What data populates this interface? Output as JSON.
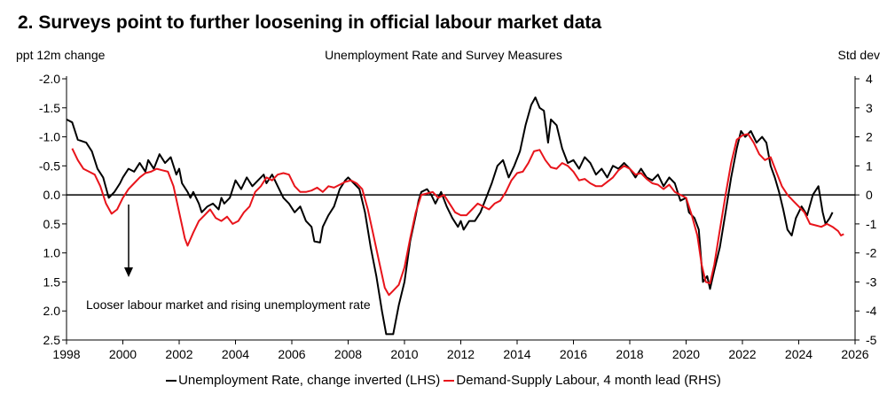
{
  "heading": "2. Surveys point to further loosening in official labour market data",
  "chart_data": {
    "type": "line",
    "title": "Unemployment Rate and Survey Measures",
    "ylabel_left": "ppt 12m change",
    "ylabel_right": "Std dev",
    "x_ticks": [
      "1998",
      "2000",
      "2002",
      "2004",
      "2006",
      "2008",
      "2010",
      "2012",
      "2014",
      "2016",
      "2018",
      "2020",
      "2022",
      "2024",
      "2026"
    ],
    "y_left_ticks": [
      "-2.0",
      "-1.5",
      "-1.0",
      "-0.5",
      "0.0",
      "0.5",
      "1.0",
      "1.5",
      "2.0",
      "2.5"
    ],
    "y_right_ticks": [
      "4",
      "3",
      "2",
      "1",
      "0",
      "-1",
      "-2",
      "-3",
      "-4",
      "-5"
    ],
    "y_left_range": [
      -2.0,
      2.5
    ],
    "y_left_inverted": true,
    "y_right_range": [
      -5,
      4
    ],
    "x_range": [
      1998,
      2026
    ],
    "grid": false,
    "legend_position": "bottom",
    "annotation": "Looser labour market and rising unemployment rate",
    "colors": {
      "unemployment": "#000000",
      "demand_supply": "#e8141b"
    },
    "series": [
      {
        "name": "Unemployment Rate, change inverted (LHS)",
        "axis": "left",
        "points": [
          [
            1998.0,
            -1.3
          ],
          [
            1998.2,
            -1.25
          ],
          [
            1998.4,
            -0.95
          ],
          [
            1998.7,
            -0.9
          ],
          [
            1998.9,
            -0.75
          ],
          [
            1999.1,
            -0.45
          ],
          [
            1999.3,
            -0.3
          ],
          [
            1999.5,
            0.05
          ],
          [
            1999.7,
            -0.05
          ],
          [
            1999.9,
            -0.2
          ],
          [
            2000.0,
            -0.3
          ],
          [
            2000.2,
            -0.45
          ],
          [
            2000.4,
            -0.4
          ],
          [
            2000.6,
            -0.55
          ],
          [
            2000.8,
            -0.4
          ],
          [
            2000.9,
            -0.6
          ],
          [
            2001.1,
            -0.45
          ],
          [
            2001.3,
            -0.7
          ],
          [
            2001.5,
            -0.55
          ],
          [
            2001.7,
            -0.65
          ],
          [
            2001.9,
            -0.35
          ],
          [
            2002.0,
            -0.45
          ],
          [
            2002.1,
            -0.2
          ],
          [
            2002.3,
            -0.05
          ],
          [
            2002.4,
            0.05
          ],
          [
            2002.5,
            -0.05
          ],
          [
            2002.7,
            0.15
          ],
          [
            2002.8,
            0.3
          ],
          [
            2003.0,
            0.2
          ],
          [
            2003.2,
            0.15
          ],
          [
            2003.4,
            0.25
          ],
          [
            2003.5,
            0.05
          ],
          [
            2003.6,
            0.15
          ],
          [
            2003.8,
            0.05
          ],
          [
            2004.0,
            -0.25
          ],
          [
            2004.2,
            -0.1
          ],
          [
            2004.4,
            -0.3
          ],
          [
            2004.6,
            -0.15
          ],
          [
            2004.8,
            -0.25
          ],
          [
            2005.0,
            -0.35
          ],
          [
            2005.1,
            -0.2
          ],
          [
            2005.3,
            -0.35
          ],
          [
            2005.5,
            -0.15
          ],
          [
            2005.7,
            0.05
          ],
          [
            2005.9,
            0.15
          ],
          [
            2006.1,
            0.3
          ],
          [
            2006.3,
            0.2
          ],
          [
            2006.5,
            0.45
          ],
          [
            2006.7,
            0.55
          ],
          [
            2006.8,
            0.8
          ],
          [
            2007.0,
            0.82
          ],
          [
            2007.1,
            0.55
          ],
          [
            2007.3,
            0.35
          ],
          [
            2007.5,
            0.2
          ],
          [
            2007.7,
            -0.1
          ],
          [
            2007.9,
            -0.25
          ],
          [
            2008.0,
            -0.3
          ],
          [
            2008.2,
            -0.2
          ],
          [
            2008.4,
            -0.1
          ],
          [
            2008.6,
            0.3
          ],
          [
            2008.8,
            0.9
          ],
          [
            2009.0,
            1.4
          ],
          [
            2009.2,
            2.0
          ],
          [
            2009.35,
            2.4
          ],
          [
            2009.6,
            2.4
          ],
          [
            2009.8,
            1.9
          ],
          [
            2010.0,
            1.5
          ],
          [
            2010.2,
            0.8
          ],
          [
            2010.4,
            0.35
          ],
          [
            2010.5,
            0.1
          ],
          [
            2010.6,
            -0.05
          ],
          [
            2010.8,
            -0.1
          ],
          [
            2010.95,
            0.0
          ],
          [
            2011.1,
            0.15
          ],
          [
            2011.3,
            -0.05
          ],
          [
            2011.5,
            0.2
          ],
          [
            2011.7,
            0.4
          ],
          [
            2011.9,
            0.55
          ],
          [
            2012.0,
            0.45
          ],
          [
            2012.1,
            0.6
          ],
          [
            2012.3,
            0.45
          ],
          [
            2012.5,
            0.45
          ],
          [
            2012.7,
            0.3
          ],
          [
            2012.9,
            0.05
          ],
          [
            2013.1,
            -0.2
          ],
          [
            2013.3,
            -0.5
          ],
          [
            2013.5,
            -0.6
          ],
          [
            2013.7,
            -0.3
          ],
          [
            2013.9,
            -0.5
          ],
          [
            2014.1,
            -0.75
          ],
          [
            2014.3,
            -1.2
          ],
          [
            2014.5,
            -1.55
          ],
          [
            2014.65,
            -1.68
          ],
          [
            2014.8,
            -1.5
          ],
          [
            2014.95,
            -1.45
          ],
          [
            2015.1,
            -0.9
          ],
          [
            2015.2,
            -1.3
          ],
          [
            2015.4,
            -1.2
          ],
          [
            2015.6,
            -0.8
          ],
          [
            2015.8,
            -0.55
          ],
          [
            2016.0,
            -0.6
          ],
          [
            2016.2,
            -0.45
          ],
          [
            2016.4,
            -0.65
          ],
          [
            2016.6,
            -0.55
          ],
          [
            2016.8,
            -0.35
          ],
          [
            2017.0,
            -0.45
          ],
          [
            2017.2,
            -0.3
          ],
          [
            2017.4,
            -0.5
          ],
          [
            2017.6,
            -0.45
          ],
          [
            2017.8,
            -0.55
          ],
          [
            2018.0,
            -0.45
          ],
          [
            2018.2,
            -0.3
          ],
          [
            2018.4,
            -0.45
          ],
          [
            2018.6,
            -0.3
          ],
          [
            2018.8,
            -0.25
          ],
          [
            2019.0,
            -0.35
          ],
          [
            2019.2,
            -0.15
          ],
          [
            2019.4,
            -0.3
          ],
          [
            2019.6,
            -0.2
          ],
          [
            2019.8,
            0.1
          ],
          [
            2020.0,
            0.05
          ],
          [
            2020.1,
            0.3
          ],
          [
            2020.3,
            0.4
          ],
          [
            2020.45,
            0.6
          ],
          [
            2020.6,
            1.5
          ],
          [
            2020.75,
            1.4
          ],
          [
            2020.85,
            1.62
          ],
          [
            2021.0,
            1.3
          ],
          [
            2021.2,
            0.9
          ],
          [
            2021.4,
            0.3
          ],
          [
            2021.6,
            -0.3
          ],
          [
            2021.8,
            -0.8
          ],
          [
            2021.95,
            -1.1
          ],
          [
            2022.1,
            -1.0
          ],
          [
            2022.3,
            -1.1
          ],
          [
            2022.5,
            -0.9
          ],
          [
            2022.7,
            -1.0
          ],
          [
            2022.85,
            -0.9
          ],
          [
            2023.0,
            -0.5
          ],
          [
            2023.15,
            -0.3
          ],
          [
            2023.3,
            -0.05
          ],
          [
            2023.45,
            0.25
          ],
          [
            2023.6,
            0.6
          ],
          [
            2023.75,
            0.7
          ],
          [
            2023.9,
            0.4
          ],
          [
            2024.1,
            0.2
          ],
          [
            2024.3,
            0.35
          ],
          [
            2024.5,
            0.0
          ],
          [
            2024.7,
            -0.15
          ],
          [
            2024.85,
            0.3
          ],
          [
            2024.95,
            0.5
          ],
          [
            2025.1,
            0.4
          ],
          [
            2025.2,
            0.3
          ]
        ]
      },
      {
        "name": "Demand-Supply Labour, 4 month lead (RHS)",
        "axis": "right",
        "points": [
          [
            1998.2,
            1.6
          ],
          [
            1998.4,
            1.2
          ],
          [
            1998.6,
            0.9
          ],
          [
            1998.8,
            0.8
          ],
          [
            1999.0,
            0.7
          ],
          [
            1999.2,
            0.3
          ],
          [
            1999.4,
            -0.3
          ],
          [
            1999.6,
            -0.65
          ],
          [
            1999.8,
            -0.5
          ],
          [
            2000.0,
            -0.1
          ],
          [
            2000.2,
            0.2
          ],
          [
            2000.4,
            0.4
          ],
          [
            2000.6,
            0.6
          ],
          [
            2000.8,
            0.75
          ],
          [
            2001.0,
            0.8
          ],
          [
            2001.2,
            0.9
          ],
          [
            2001.4,
            0.85
          ],
          [
            2001.6,
            0.8
          ],
          [
            2001.8,
            0.3
          ],
          [
            2002.0,
            -0.6
          ],
          [
            2002.2,
            -1.5
          ],
          [
            2002.3,
            -1.75
          ],
          [
            2002.5,
            -1.3
          ],
          [
            2002.7,
            -0.9
          ],
          [
            2002.9,
            -0.7
          ],
          [
            2003.1,
            -0.5
          ],
          [
            2003.3,
            -0.8
          ],
          [
            2003.5,
            -0.9
          ],
          [
            2003.7,
            -0.75
          ],
          [
            2003.9,
            -1.0
          ],
          [
            2004.1,
            -0.9
          ],
          [
            2004.3,
            -0.6
          ],
          [
            2004.5,
            -0.4
          ],
          [
            2004.7,
            0.1
          ],
          [
            2004.9,
            0.3
          ],
          [
            2005.1,
            0.6
          ],
          [
            2005.3,
            0.5
          ],
          [
            2005.5,
            0.7
          ],
          [
            2005.7,
            0.75
          ],
          [
            2005.9,
            0.7
          ],
          [
            2006.1,
            0.3
          ],
          [
            2006.3,
            0.1
          ],
          [
            2006.5,
            0.1
          ],
          [
            2006.7,
            0.15
          ],
          [
            2006.9,
            0.25
          ],
          [
            2007.1,
            0.1
          ],
          [
            2007.3,
            0.3
          ],
          [
            2007.5,
            0.25
          ],
          [
            2007.7,
            0.35
          ],
          [
            2007.9,
            0.45
          ],
          [
            2008.1,
            0.5
          ],
          [
            2008.3,
            0.4
          ],
          [
            2008.5,
            0.2
          ],
          [
            2008.7,
            -0.5
          ],
          [
            2008.9,
            -1.4
          ],
          [
            2009.1,
            -2.3
          ],
          [
            2009.3,
            -3.2
          ],
          [
            2009.45,
            -3.45
          ],
          [
            2009.6,
            -3.3
          ],
          [
            2009.8,
            -3.1
          ],
          [
            2010.0,
            -2.5
          ],
          [
            2010.2,
            -1.5
          ],
          [
            2010.4,
            -0.6
          ],
          [
            2010.6,
            0.0
          ],
          [
            2010.8,
            0.05
          ],
          [
            2011.0,
            0.1
          ],
          [
            2011.2,
            -0.1
          ],
          [
            2011.4,
            0.0
          ],
          [
            2011.6,
            -0.3
          ],
          [
            2011.8,
            -0.6
          ],
          [
            2012.0,
            -0.7
          ],
          [
            2012.2,
            -0.7
          ],
          [
            2012.4,
            -0.5
          ],
          [
            2012.6,
            -0.3
          ],
          [
            2012.8,
            -0.4
          ],
          [
            2013.0,
            -0.5
          ],
          [
            2013.2,
            -0.3
          ],
          [
            2013.4,
            -0.2
          ],
          [
            2013.6,
            0.1
          ],
          [
            2013.8,
            0.5
          ],
          [
            2014.0,
            0.75
          ],
          [
            2014.2,
            0.8
          ],
          [
            2014.4,
            1.1
          ],
          [
            2014.6,
            1.5
          ],
          [
            2014.8,
            1.55
          ],
          [
            2015.0,
            1.2
          ],
          [
            2015.2,
            0.95
          ],
          [
            2015.4,
            0.9
          ],
          [
            2015.6,
            1.1
          ],
          [
            2015.8,
            1.0
          ],
          [
            2016.0,
            0.8
          ],
          [
            2016.2,
            0.5
          ],
          [
            2016.4,
            0.55
          ],
          [
            2016.6,
            0.4
          ],
          [
            2016.8,
            0.3
          ],
          [
            2017.0,
            0.3
          ],
          [
            2017.2,
            0.45
          ],
          [
            2017.4,
            0.6
          ],
          [
            2017.6,
            0.85
          ],
          [
            2017.8,
            1.0
          ],
          [
            2018.0,
            0.9
          ],
          [
            2018.2,
            0.7
          ],
          [
            2018.4,
            0.75
          ],
          [
            2018.6,
            0.55
          ],
          [
            2018.8,
            0.4
          ],
          [
            2019.0,
            0.35
          ],
          [
            2019.2,
            0.2
          ],
          [
            2019.4,
            0.35
          ],
          [
            2019.6,
            0.1
          ],
          [
            2019.8,
            0.0
          ],
          [
            2020.0,
            -0.1
          ],
          [
            2020.2,
            -0.7
          ],
          [
            2020.4,
            -1.4
          ],
          [
            2020.55,
            -2.4
          ],
          [
            2020.7,
            -3.0
          ],
          [
            2020.85,
            -3.05
          ],
          [
            2021.0,
            -2.4
          ],
          [
            2021.2,
            -1.2
          ],
          [
            2021.4,
            0.0
          ],
          [
            2021.6,
            1.1
          ],
          [
            2021.8,
            1.9
          ],
          [
            2022.0,
            2.05
          ],
          [
            2022.2,
            2.1
          ],
          [
            2022.4,
            1.8
          ],
          [
            2022.6,
            1.4
          ],
          [
            2022.8,
            1.2
          ],
          [
            2023.0,
            1.3
          ],
          [
            2023.2,
            0.8
          ],
          [
            2023.4,
            0.3
          ],
          [
            2023.6,
            0.0
          ],
          [
            2023.8,
            -0.2
          ],
          [
            2024.0,
            -0.4
          ],
          [
            2024.2,
            -0.6
          ],
          [
            2024.4,
            -1.0
          ],
          [
            2024.6,
            -1.05
          ],
          [
            2024.8,
            -1.1
          ],
          [
            2025.0,
            -1.0
          ],
          [
            2025.2,
            -1.1
          ],
          [
            2025.4,
            -1.25
          ],
          [
            2025.5,
            -1.4
          ],
          [
            2025.6,
            -1.35
          ]
        ]
      }
    ]
  }
}
